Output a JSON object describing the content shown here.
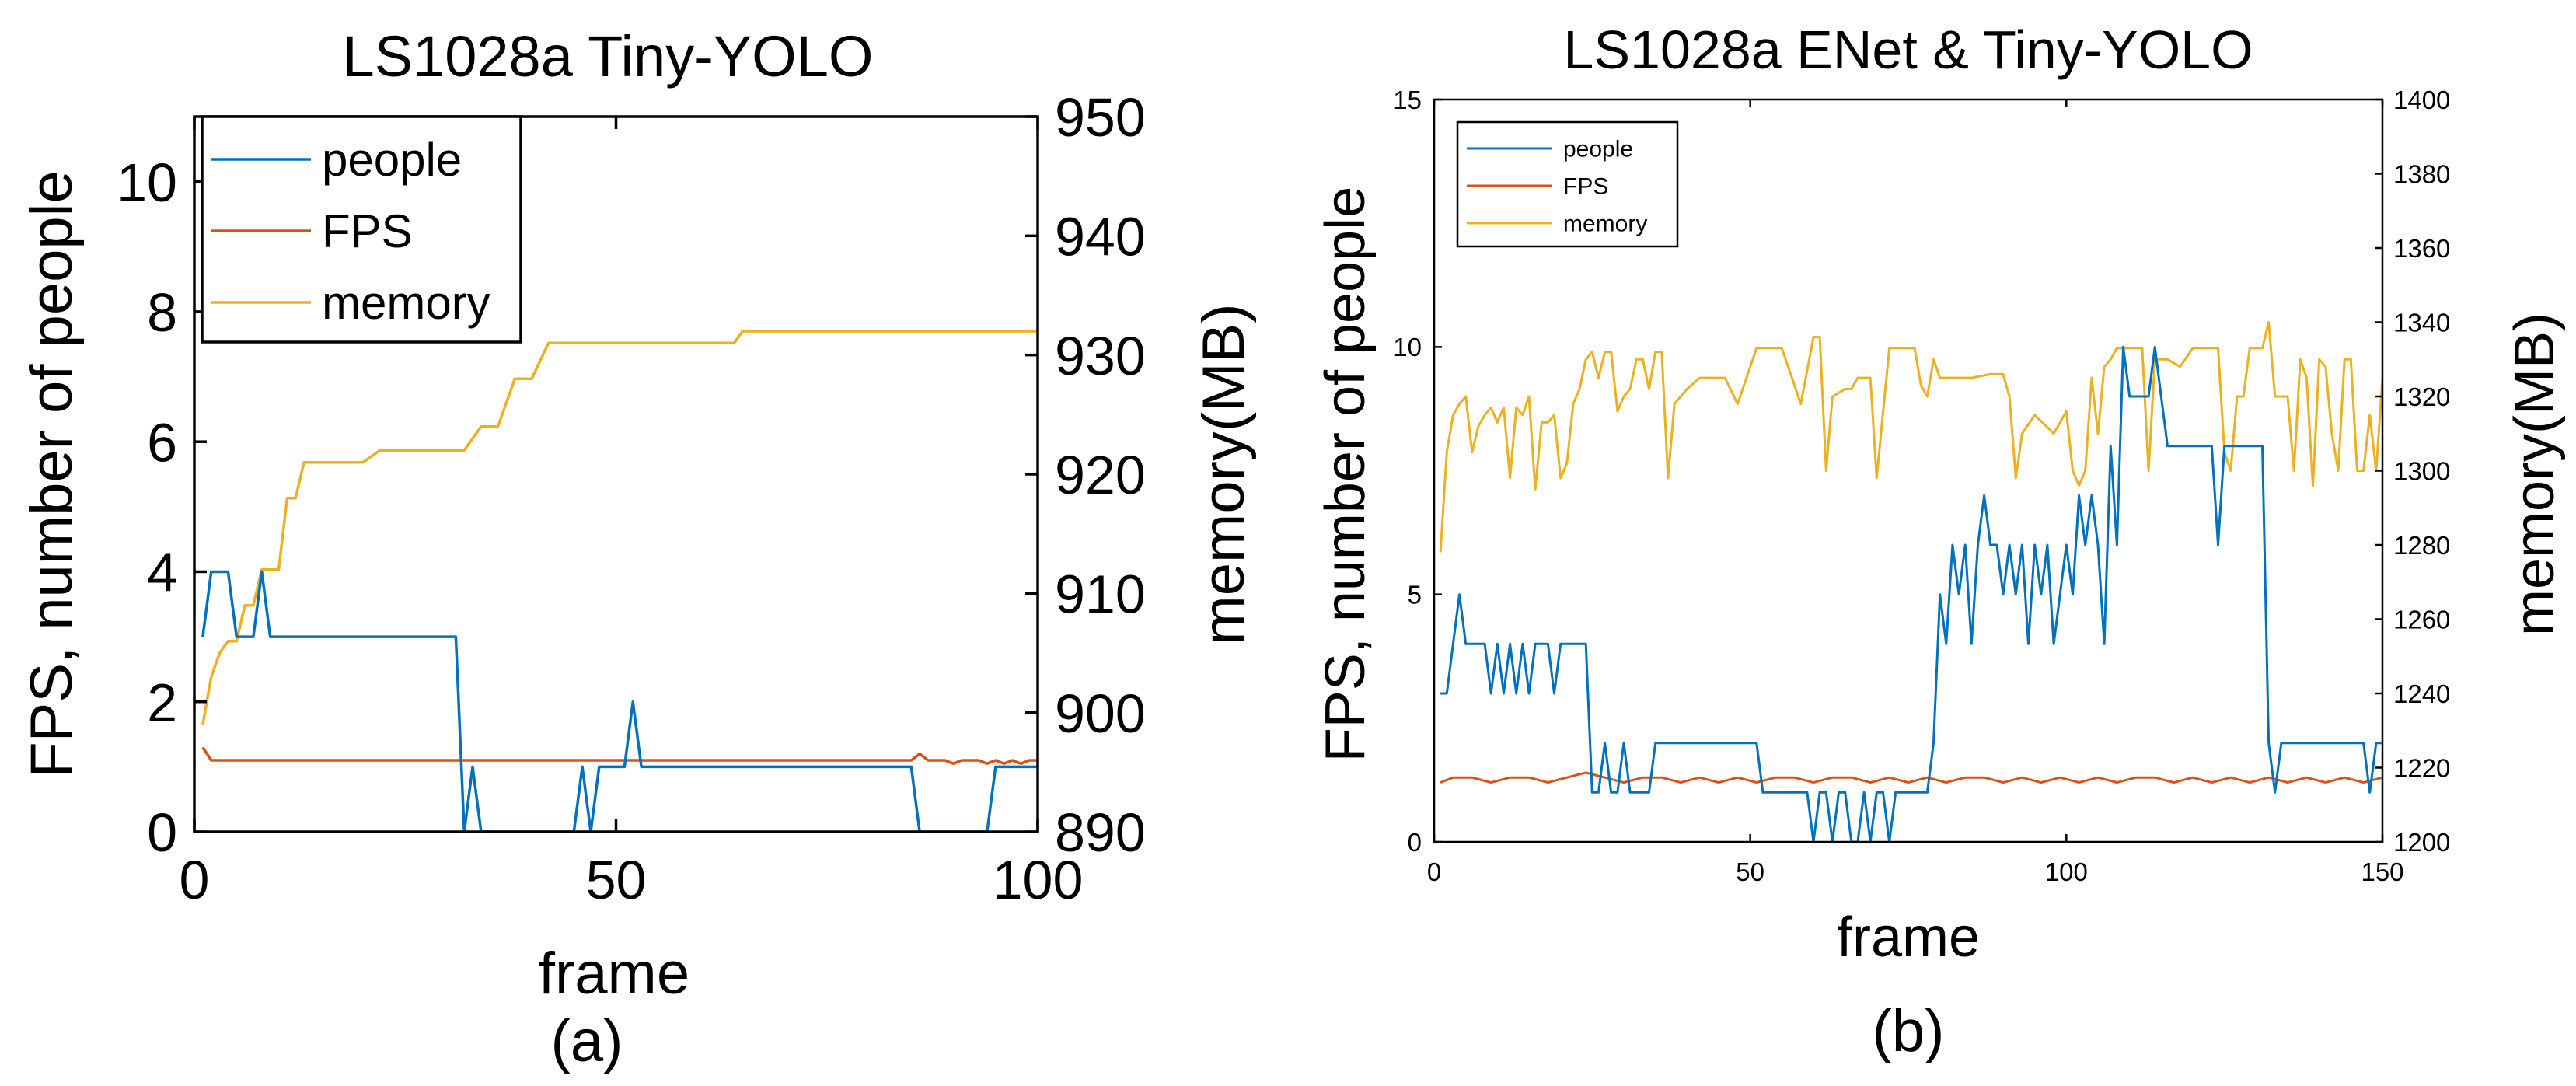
{
  "colors": {
    "people": "#0072BD",
    "fps": "#D95319",
    "memory": "#EDB120",
    "axis": "#000000",
    "background": "#FFFFFF"
  },
  "chart_data": [
    {
      "type": "line",
      "title": "LS1028a Tiny-YOLO",
      "xlabel": "frame",
      "ylabel": "FPS, number of people",
      "y2label": "memory(MB)",
      "caption": "(a)",
      "xlim": [
        0,
        100
      ],
      "ylim": [
        0,
        11
      ],
      "y2lim": [
        890,
        950
      ],
      "xticks": [
        0,
        50,
        100
      ],
      "yticks": [
        0,
        2,
        4,
        6,
        8,
        10
      ],
      "y2ticks": [
        890,
        900,
        910,
        920,
        930,
        940,
        950
      ],
      "grid": false,
      "legend_position": "top-left",
      "series": [
        {
          "name": "people",
          "axis": "left",
          "x": [
            1,
            2,
            3,
            4,
            5,
            6,
            7,
            8,
            9,
            10,
            15,
            20,
            25,
            30,
            31,
            32,
            33,
            34,
            35,
            36,
            40,
            45,
            46,
            47,
            48,
            49,
            50,
            51,
            52,
            53,
            54,
            55,
            60,
            65,
            70,
            75,
            80,
            85,
            86,
            87,
            88,
            89,
            90,
            91,
            92,
            93,
            94,
            95,
            96,
            97,
            98,
            99,
            100
          ],
          "y": [
            3,
            4,
            4,
            4,
            3,
            3,
            3,
            4,
            3,
            3,
            3,
            3,
            3,
            3,
            3,
            0,
            1,
            0,
            0,
            0,
            0,
            0,
            1,
            0,
            1,
            1,
            1,
            1,
            2,
            1,
            1,
            1,
            1,
            1,
            1,
            1,
            1,
            1,
            0,
            0,
            0,
            0,
            0,
            0,
            0,
            0,
            0,
            1,
            1,
            1,
            1,
            1,
            1
          ]
        },
        {
          "name": "FPS",
          "axis": "left",
          "x": [
            1,
            2,
            5,
            10,
            20,
            30,
            40,
            50,
            60,
            70,
            80,
            85,
            86,
            87,
            88,
            89,
            90,
            91,
            92,
            93,
            94,
            95,
            96,
            97,
            98,
            99,
            100
          ],
          "y": [
            1.3,
            1.1,
            1.1,
            1.1,
            1.1,
            1.1,
            1.1,
            1.1,
            1.1,
            1.1,
            1.1,
            1.1,
            1.2,
            1.1,
            1.1,
            1.1,
            1.05,
            1.1,
            1.1,
            1.1,
            1.05,
            1.1,
            1.05,
            1.1,
            1.05,
            1.1,
            1.1
          ]
        },
        {
          "name": "memory",
          "axis": "right",
          "x": [
            1,
            2,
            3,
            4,
            5,
            6,
            7,
            8,
            9,
            10,
            11,
            12,
            13,
            15,
            20,
            22,
            25,
            30,
            32,
            34,
            36,
            38,
            40,
            42,
            45,
            48,
            50,
            60,
            62,
            64,
            65,
            70,
            80,
            90,
            100
          ],
          "y": [
            899,
            903,
            905,
            906,
            906,
            909,
            909,
            912,
            912,
            912,
            918,
            918,
            921,
            921,
            921,
            922,
            922,
            922,
            922,
            924,
            924,
            928,
            928,
            931,
            931,
            931,
            931,
            931,
            931,
            931,
            932,
            932,
            932,
            932,
            932
          ]
        }
      ]
    },
    {
      "type": "line",
      "title": "LS1028a ENet & Tiny-YOLO",
      "xlabel": "frame",
      "ylabel": "FPS, number of people",
      "y2label": "memory(MB)",
      "caption": "(b)",
      "xlim": [
        0,
        150
      ],
      "ylim": [
        0,
        15
      ],
      "y2lim": [
        1200,
        1400
      ],
      "xticks": [
        0,
        50,
        100,
        150
      ],
      "yticks": [
        0,
        5,
        10,
        15
      ],
      "y2ticks": [
        1200,
        1220,
        1240,
        1260,
        1280,
        1300,
        1320,
        1340,
        1360,
        1380,
        1400
      ],
      "grid": false,
      "legend_position": "top-left",
      "series": [
        {
          "name": "people",
          "axis": "left",
          "x": [
            1,
            2,
            3,
            4,
            5,
            6,
            7,
            8,
            9,
            10,
            11,
            12,
            13,
            14,
            15,
            16,
            17,
            18,
            19,
            20,
            21,
            22,
            23,
            24,
            25,
            26,
            27,
            28,
            29,
            30,
            31,
            32,
            33,
            34,
            35,
            40,
            45,
            50,
            51,
            52,
            55,
            58,
            59,
            60,
            61,
            62,
            63,
            64,
            65,
            66,
            67,
            68,
            69,
            70,
            71,
            72,
            73,
            74,
            75,
            76,
            77,
            78,
            79,
            80,
            81,
            82,
            83,
            84,
            85,
            86,
            87,
            88,
            89,
            90,
            91,
            92,
            93,
            94,
            95,
            96,
            97,
            98,
            99,
            100,
            101,
            102,
            103,
            104,
            105,
            106,
            107,
            108,
            109,
            110,
            111,
            112,
            113,
            114,
            115,
            116,
            117,
            118,
            119,
            120,
            121,
            122,
            123,
            124,
            125,
            126,
            127,
            128,
            129,
            130,
            131,
            132,
            133,
            134,
            135,
            136,
            137,
            138,
            139,
            140,
            141,
            142,
            143,
            144,
            145,
            146,
            147,
            148,
            149,
            150
          ],
          "y": [
            3,
            3,
            4,
            5,
            4,
            4,
            4,
            4,
            3,
            4,
            3,
            4,
            3,
            4,
            3,
            4,
            4,
            4,
            3,
            4,
            4,
            4,
            4,
            4,
            1,
            1,
            2,
            1,
            1,
            2,
            1,
            1,
            1,
            1,
            2,
            2,
            2,
            2,
            2,
            1,
            1,
            1,
            1,
            0,
            1,
            1,
            0,
            1,
            1,
            0,
            0,
            1,
            0,
            1,
            1,
            0,
            1,
            1,
            1,
            1,
            1,
            1,
            2,
            5,
            4,
            6,
            5,
            6,
            4,
            6,
            7,
            6,
            6,
            5,
            6,
            5,
            6,
            4,
            6,
            5,
            6,
            4,
            5,
            6,
            5,
            7,
            6,
            7,
            6,
            4,
            8,
            6,
            10,
            9,
            9,
            9,
            9,
            10,
            9,
            8,
            8,
            8,
            8,
            8,
            8,
            8,
            8,
            6,
            8,
            8,
            8,
            8,
            8,
            8,
            8,
            2,
            1,
            2,
            2,
            2,
            2,
            2,
            2,
            2,
            2,
            2,
            2,
            2,
            2,
            2,
            2,
            1,
            2,
            2
          ]
        },
        {
          "name": "FPS",
          "axis": "left",
          "x": [
            1,
            3,
            6,
            9,
            12,
            15,
            18,
            21,
            24,
            27,
            30,
            33,
            36,
            39,
            42,
            45,
            48,
            51,
            54,
            57,
            60,
            63,
            66,
            69,
            72,
            75,
            78,
            81,
            84,
            87,
            90,
            93,
            96,
            99,
            102,
            105,
            108,
            111,
            114,
            117,
            120,
            123,
            126,
            129,
            132,
            135,
            138,
            141,
            144,
            147,
            150
          ],
          "y": [
            1.2,
            1.3,
            1.3,
            1.2,
            1.3,
            1.3,
            1.2,
            1.3,
            1.4,
            1.3,
            1.2,
            1.3,
            1.3,
            1.2,
            1.3,
            1.2,
            1.3,
            1.2,
            1.3,
            1.3,
            1.2,
            1.3,
            1.3,
            1.2,
            1.3,
            1.2,
            1.3,
            1.2,
            1.3,
            1.3,
            1.2,
            1.3,
            1.2,
            1.3,
            1.2,
            1.3,
            1.2,
            1.3,
            1.3,
            1.2,
            1.3,
            1.2,
            1.3,
            1.2,
            1.3,
            1.2,
            1.3,
            1.2,
            1.3,
            1.2,
            1.3
          ]
        },
        {
          "name": "memory",
          "axis": "right",
          "x": [
            1,
            2,
            3,
            4,
            5,
            6,
            7,
            8,
            9,
            10,
            11,
            12,
            13,
            14,
            15,
            16,
            17,
            18,
            19,
            20,
            21,
            22,
            23,
            24,
            25,
            26,
            27,
            28,
            29,
            30,
            31,
            32,
            33,
            34,
            35,
            36,
            37,
            38,
            40,
            42,
            44,
            46,
            48,
            50,
            51,
            52,
            53,
            55,
            58,
            60,
            61,
            62,
            63,
            65,
            66,
            67,
            68,
            69,
            70,
            72,
            75,
            76,
            77,
            78,
            79,
            80,
            82,
            85,
            88,
            90,
            91,
            92,
            93,
            95,
            98,
            100,
            101,
            102,
            103,
            104,
            105,
            106,
            107,
            108,
            110,
            112,
            113,
            114,
            115,
            116,
            118,
            120,
            122,
            124,
            125,
            126,
            127,
            128,
            129,
            130,
            131,
            132,
            133,
            134,
            135,
            136,
            137,
            138,
            139,
            140,
            141,
            142,
            143,
            144,
            145,
            146,
            147,
            148,
            149,
            150
          ],
          "y": [
            1278,
            1305,
            1315,
            1318,
            1320,
            1305,
            1312,
            1315,
            1317,
            1313,
            1317,
            1298,
            1317,
            1315,
            1320,
            1295,
            1313,
            1313,
            1315,
            1298,
            1302,
            1318,
            1322,
            1330,
            1332,
            1325,
            1332,
            1332,
            1316,
            1320,
            1322,
            1330,
            1330,
            1322,
            1332,
            1332,
            1298,
            1318,
            1322,
            1325,
            1325,
            1325,
            1318,
            1328,
            1333,
            1333,
            1333,
            1333,
            1318,
            1336,
            1336,
            1300,
            1320,
            1322,
            1322,
            1325,
            1325,
            1325,
            1298,
            1333,
            1333,
            1333,
            1323,
            1320,
            1330,
            1325,
            1325,
            1325,
            1326,
            1326,
            1320,
            1298,
            1310,
            1315,
            1310,
            1316,
            1300,
            1296,
            1300,
            1325,
            1310,
            1328,
            1330,
            1333,
            1333,
            1333,
            1300,
            1330,
            1330,
            1330,
            1328,
            1333,
            1333,
            1333,
            1305,
            1300,
            1320,
            1320,
            1333,
            1333,
            1333,
            1340,
            1320,
            1320,
            1320,
            1300,
            1330,
            1325,
            1296,
            1330,
            1328,
            1310,
            1300,
            1330,
            1330,
            1300,
            1300,
            1315,
            1300,
            1325
          ]
        }
      ]
    }
  ]
}
